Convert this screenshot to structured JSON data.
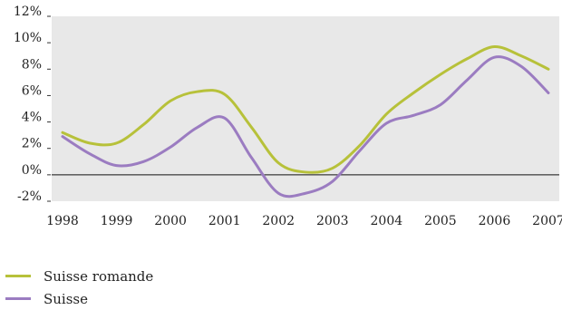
{
  "chart_data": {
    "type": "line",
    "title": "",
    "xlabel": "",
    "ylabel": "",
    "categories": [
      "1998",
      "1999",
      "2000",
      "2001",
      "2002",
      "2003",
      "2004",
      "2005",
      "2006",
      "2007"
    ],
    "ylim": [
      -2,
      12
    ],
    "yticks": [
      -2,
      0,
      2,
      4,
      6,
      8,
      10,
      12
    ],
    "ytick_labels": [
      "-2%",
      "0%",
      "2%",
      "4%",
      "6%",
      "8%",
      "10%",
      "12%"
    ],
    "grid": false,
    "legend_position": "bottom-left",
    "series": [
      {
        "name": "Suisse romande",
        "color": "#b7c13a",
        "points": [
          [
            1998,
            3.2
          ],
          [
            1998.5,
            2.4
          ],
          [
            1999,
            2.4
          ],
          [
            1999.5,
            3.8
          ],
          [
            2000,
            5.6
          ],
          [
            2000.5,
            6.3
          ],
          [
            2001,
            6.1
          ],
          [
            2001.5,
            3.6
          ],
          [
            2002,
            0.9
          ],
          [
            2002.5,
            0.2
          ],
          [
            2003,
            0.5
          ],
          [
            2003.5,
            2.2
          ],
          [
            2004,
            4.6
          ],
          [
            2004.5,
            6.2
          ],
          [
            2005,
            7.6
          ],
          [
            2005.5,
            8.8
          ],
          [
            2006,
            9.7
          ],
          [
            2006.5,
            9.0
          ],
          [
            2007,
            8.0
          ]
        ]
      },
      {
        "name": "Suisse",
        "color": "#9b7cc1",
        "points": [
          [
            1998,
            2.9
          ],
          [
            1998.5,
            1.6
          ],
          [
            1999,
            0.7
          ],
          [
            1999.5,
            1.0
          ],
          [
            2000,
            2.1
          ],
          [
            2000.5,
            3.6
          ],
          [
            2001,
            4.3
          ],
          [
            2001.5,
            1.3
          ],
          [
            2002,
            -1.4
          ],
          [
            2002.5,
            -1.4
          ],
          [
            2003,
            -0.5
          ],
          [
            2003.5,
            1.8
          ],
          [
            2004,
            3.9
          ],
          [
            2004.5,
            4.5
          ],
          [
            2005,
            5.3
          ],
          [
            2005.5,
            7.2
          ],
          [
            2006,
            8.9
          ],
          [
            2006.5,
            8.2
          ],
          [
            2007,
            6.2
          ]
        ]
      }
    ]
  },
  "legend": {
    "items": [
      {
        "label": "Suisse romande",
        "color": "#b7c13a"
      },
      {
        "label": "Suisse",
        "color": "#9b7cc1"
      }
    ]
  }
}
